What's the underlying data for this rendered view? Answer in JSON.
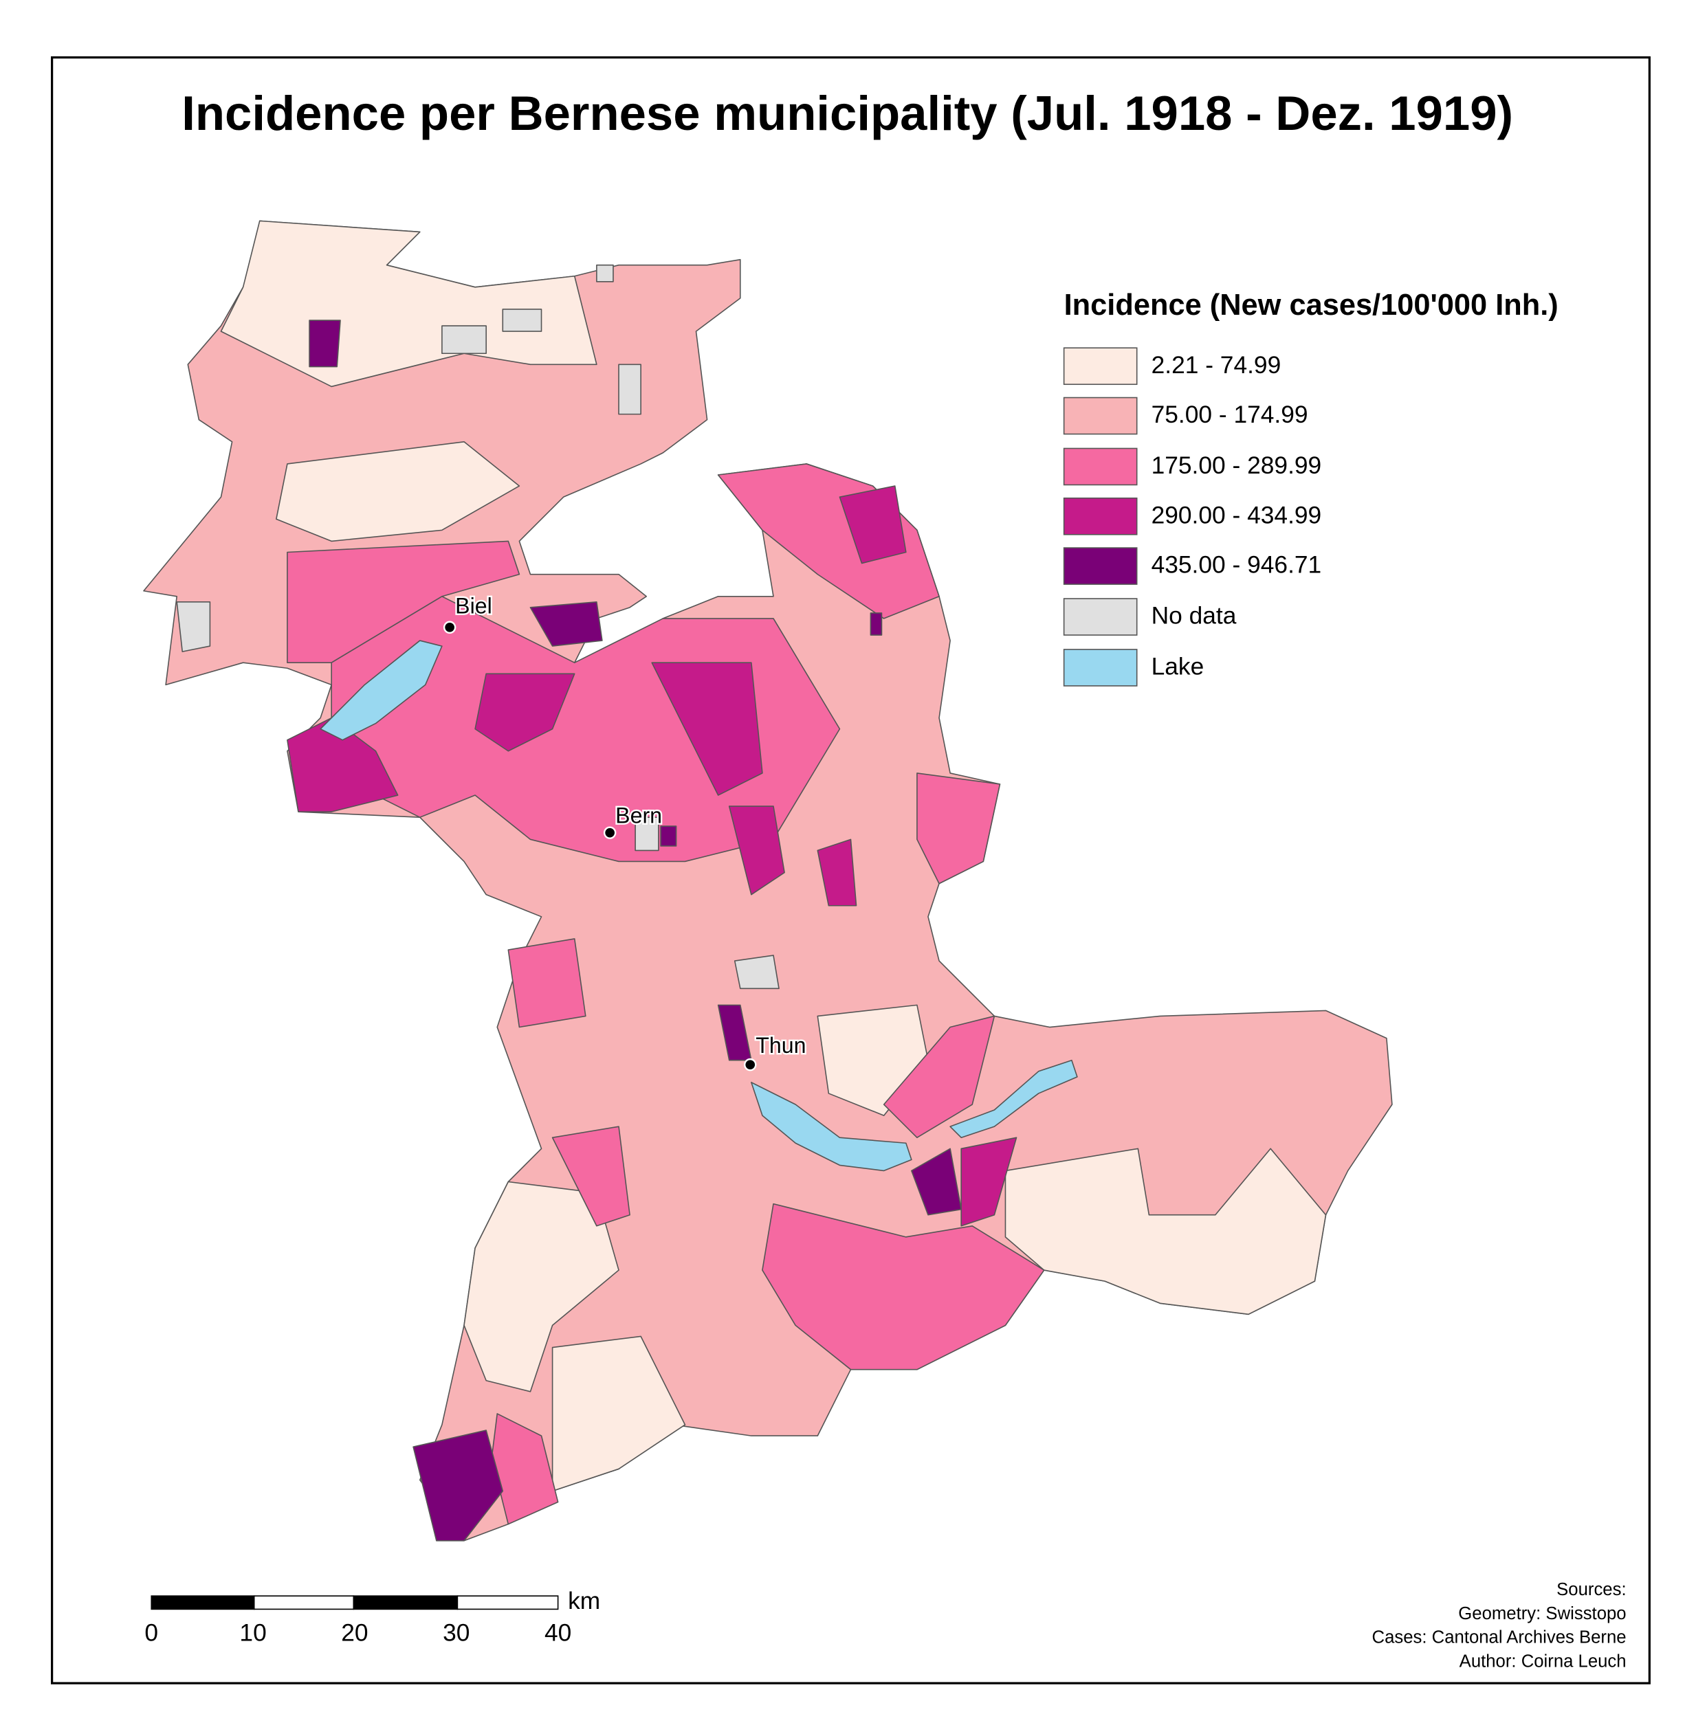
{
  "title": "Incidence per Bernese municipality (Jul. 1918 - Dez. 1919)",
  "legend": {
    "title": "Incidence (New cases/100'000 Inh.)",
    "items": [
      {
        "label": "2.21 - 74.99",
        "color": "#fdebe2"
      },
      {
        "label": "75.00 - 174.99",
        "color": "#f8b3b6"
      },
      {
        "label": "175.00 - 289.99",
        "color": "#f569a1"
      },
      {
        "label": "290.00 - 434.99",
        "color": "#c51b8a"
      },
      {
        "label": "435.00 - 946.71",
        "color": "#7a0177"
      },
      {
        "label": "No data",
        "color": "#e0e0e0"
      },
      {
        "label": "Lake",
        "color": "#99d8f0"
      }
    ]
  },
  "cities": [
    "Biel",
    "Bern",
    "Thun"
  ],
  "scale_bar": {
    "ticks": [
      0,
      10,
      20,
      30,
      40
    ],
    "unit": "km"
  },
  "sources": [
    "Sources:",
    "Geometry: Swisstopo",
    "Cases: Cantonal Archives Berne",
    "Author: Coirna Leuch"
  ]
}
